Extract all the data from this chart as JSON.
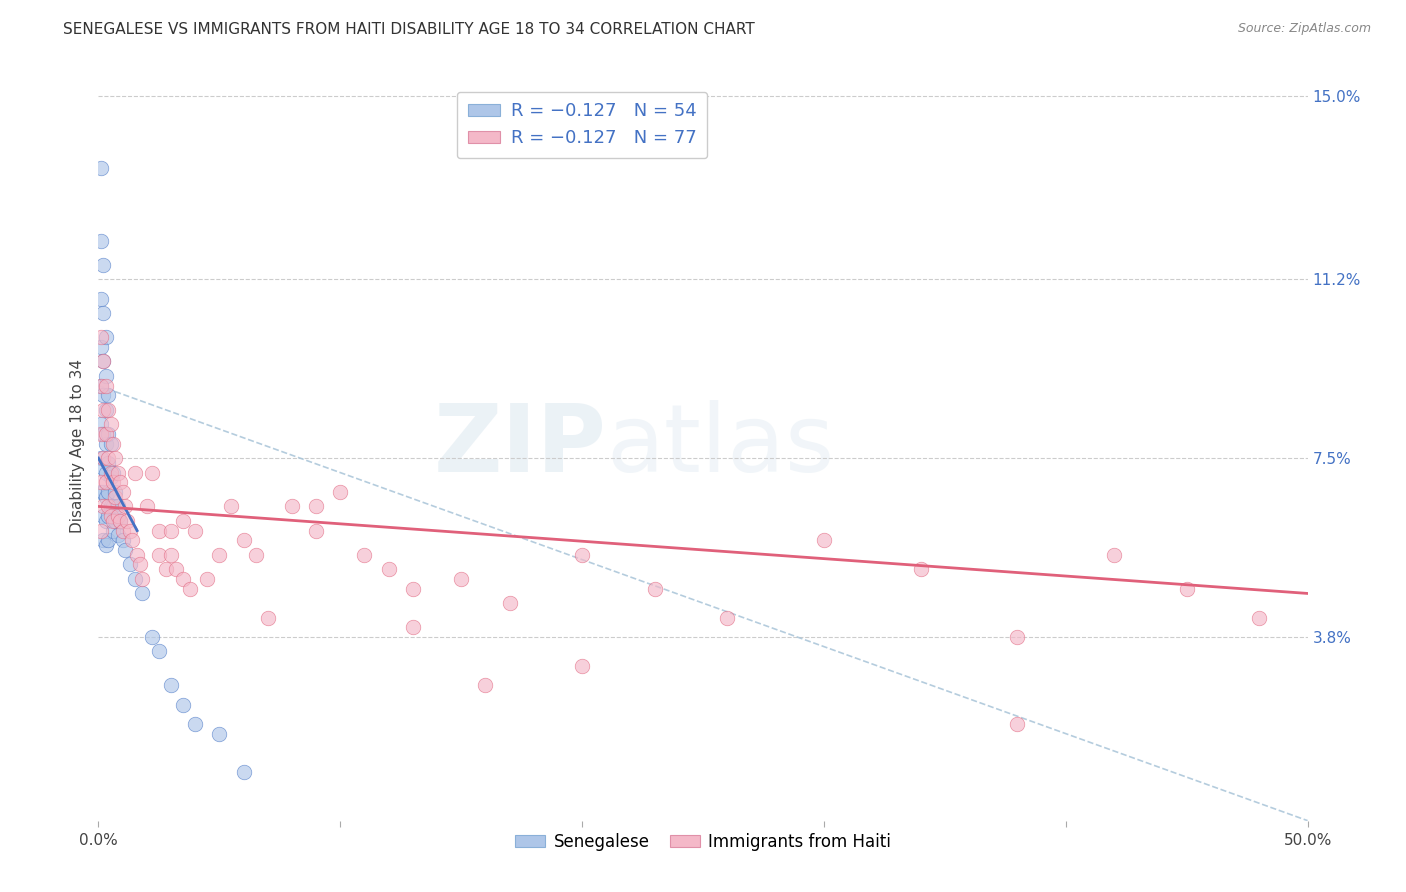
{
  "title": "SENEGALESE VS IMMIGRANTS FROM HAITI DISABILITY AGE 18 TO 34 CORRELATION CHART",
  "source": "Source: ZipAtlas.com",
  "ylabel": "Disability Age 18 to 34",
  "xlim": [
    0.0,
    0.5
  ],
  "ylim": [
    0.0,
    0.155
  ],
  "ytick_labels_right": [
    "15.0%",
    "11.2%",
    "7.5%",
    "3.8%"
  ],
  "ytick_vals_right": [
    0.15,
    0.112,
    0.075,
    0.038
  ],
  "watermark_zip": "ZIP",
  "watermark_atlas": "atlas",
  "legend_entry1": "R = −0.127   N = 54",
  "legend_entry2": "R = −0.127   N = 77",
  "legend_color1": "#aec6e8",
  "legend_color2": "#f4b8c8",
  "scatter_color1": "#aec6e8",
  "scatter_color2": "#f4b8c8",
  "line_color1": "#4472c4",
  "line_color2": "#e0607a",
  "dashed_line_color": "#a8c4d8",
  "title_fontsize": 11,
  "axis_label_fontsize": 11,
  "tick_fontsize": 11,
  "background_color": "#ffffff",
  "grid_color": "#cccccc",
  "senegalese_x": [
    0.001,
    0.001,
    0.001,
    0.001,
    0.001,
    0.001,
    0.001,
    0.001,
    0.002,
    0.002,
    0.002,
    0.002,
    0.002,
    0.002,
    0.002,
    0.002,
    0.002,
    0.003,
    0.003,
    0.003,
    0.003,
    0.003,
    0.003,
    0.003,
    0.003,
    0.004,
    0.004,
    0.004,
    0.004,
    0.004,
    0.004,
    0.005,
    0.005,
    0.005,
    0.006,
    0.006,
    0.006,
    0.007,
    0.007,
    0.008,
    0.008,
    0.009,
    0.01,
    0.011,
    0.013,
    0.015,
    0.018,
    0.022,
    0.025,
    0.03,
    0.035,
    0.04,
    0.05,
    0.06
  ],
  "senegalese_y": [
    0.135,
    0.12,
    0.108,
    0.098,
    0.09,
    0.082,
    0.075,
    0.068,
    0.115,
    0.105,
    0.095,
    0.088,
    0.08,
    0.073,
    0.068,
    0.063,
    0.058,
    0.1,
    0.092,
    0.085,
    0.078,
    0.072,
    0.067,
    0.062,
    0.057,
    0.088,
    0.08,
    0.074,
    0.068,
    0.063,
    0.058,
    0.078,
    0.071,
    0.065,
    0.072,
    0.065,
    0.06,
    0.068,
    0.062,
    0.065,
    0.059,
    0.062,
    0.058,
    0.056,
    0.053,
    0.05,
    0.047,
    0.038,
    0.035,
    0.028,
    0.024,
    0.02,
    0.018,
    0.01
  ],
  "haiti_x": [
    0.001,
    0.001,
    0.001,
    0.001,
    0.001,
    0.002,
    0.002,
    0.002,
    0.002,
    0.003,
    0.003,
    0.003,
    0.004,
    0.004,
    0.004,
    0.005,
    0.005,
    0.005,
    0.006,
    0.006,
    0.006,
    0.007,
    0.007,
    0.008,
    0.008,
    0.009,
    0.009,
    0.01,
    0.01,
    0.011,
    0.012,
    0.013,
    0.014,
    0.015,
    0.016,
    0.017,
    0.018,
    0.02,
    0.022,
    0.025,
    0.025,
    0.028,
    0.03,
    0.03,
    0.032,
    0.035,
    0.035,
    0.038,
    0.04,
    0.045,
    0.05,
    0.055,
    0.06,
    0.065,
    0.07,
    0.08,
    0.09,
    0.1,
    0.11,
    0.12,
    0.13,
    0.15,
    0.17,
    0.2,
    0.23,
    0.26,
    0.3,
    0.34,
    0.38,
    0.42,
    0.45,
    0.48,
    0.09,
    0.13,
    0.16,
    0.2,
    0.38
  ],
  "haiti_y": [
    0.1,
    0.09,
    0.08,
    0.07,
    0.06,
    0.095,
    0.085,
    0.075,
    0.065,
    0.09,
    0.08,
    0.07,
    0.085,
    0.075,
    0.065,
    0.082,
    0.072,
    0.063,
    0.078,
    0.07,
    0.062,
    0.075,
    0.067,
    0.072,
    0.063,
    0.07,
    0.062,
    0.068,
    0.06,
    0.065,
    0.062,
    0.06,
    0.058,
    0.072,
    0.055,
    0.053,
    0.05,
    0.065,
    0.072,
    0.06,
    0.055,
    0.052,
    0.06,
    0.055,
    0.052,
    0.062,
    0.05,
    0.048,
    0.06,
    0.05,
    0.055,
    0.065,
    0.058,
    0.055,
    0.042,
    0.065,
    0.06,
    0.068,
    0.055,
    0.052,
    0.048,
    0.05,
    0.045,
    0.055,
    0.048,
    0.042,
    0.058,
    0.052,
    0.038,
    0.055,
    0.048,
    0.042,
    0.065,
    0.04,
    0.028,
    0.032,
    0.02
  ],
  "blue_line_x": [
    0.0,
    0.016
  ],
  "blue_line_y": [
    0.075,
    0.06
  ],
  "pink_line_x": [
    0.0,
    0.5
  ],
  "pink_line_y": [
    0.065,
    0.047
  ],
  "dashed_line_x": [
    0.0,
    0.5
  ],
  "dashed_line_y": [
    0.09,
    0.0
  ]
}
